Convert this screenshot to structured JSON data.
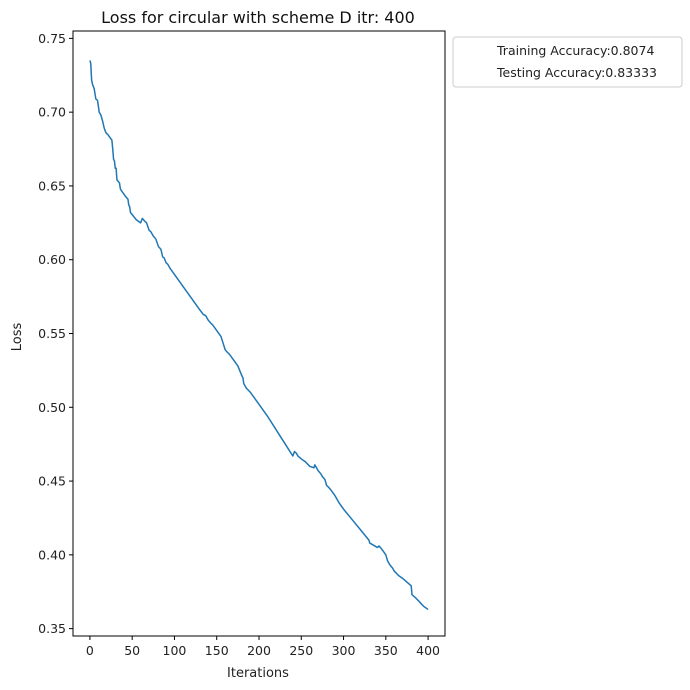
{
  "chart_data": {
    "type": "line",
    "title": "Loss for circular with scheme D itr: 400",
    "xlabel": "Iterations",
    "ylabel": "Loss",
    "xlim": [
      -20,
      420
    ],
    "ylim": [
      0.345,
      0.755
    ],
    "xticks": [
      0,
      50,
      100,
      150,
      200,
      250,
      300,
      350,
      400
    ],
    "yticks": [
      0.35,
      0.4,
      0.45,
      0.5,
      0.55,
      0.6,
      0.65,
      0.7,
      0.75
    ],
    "ytick_labels": [
      "0.35",
      "0.40",
      "0.45",
      "0.50",
      "0.55",
      "0.60",
      "0.65",
      "0.70",
      "0.75"
    ],
    "grid": false,
    "legend_position": "outside-top-right",
    "legend": [
      "Training Accuracy:0.8074",
      "Testing Accuracy:0.83333"
    ],
    "series": [
      {
        "color": "#1f77b4",
        "x": [
          0,
          1,
          2,
          3,
          5,
          7,
          9,
          11,
          13,
          15,
          17,
          19,
          21,
          26,
          27,
          28,
          29,
          30,
          31,
          32,
          35,
          36,
          37,
          42,
          45,
          46,
          47,
          48,
          55,
          60,
          62,
          65,
          67,
          70,
          72,
          75,
          78,
          81,
          84,
          86,
          88,
          90,
          92,
          95,
          100,
          110,
          120,
          130,
          134,
          137,
          140,
          143,
          145,
          150,
          155,
          160,
          163,
          165,
          170,
          175,
          180,
          181,
          182,
          184,
          185,
          190,
          195,
          200,
          210,
          220,
          230,
          240,
          242,
          244,
          245,
          246,
          250,
          255,
          260,
          265,
          266,
          267,
          270,
          273,
          275,
          278,
          280,
          282,
          285,
          290,
          295,
          300,
          310,
          320,
          330,
          331,
          340,
          342,
          345,
          350,
          352,
          355,
          358,
          360,
          365,
          370,
          380,
          381,
          385,
          390,
          395,
          400
        ],
        "y": [
          0.735,
          0.733,
          0.722,
          0.719,
          0.716,
          0.709,
          0.708,
          0.7,
          0.698,
          0.694,
          0.689,
          0.686,
          0.685,
          0.681,
          0.675,
          0.668,
          0.667,
          0.662,
          0.662,
          0.654,
          0.652,
          0.648,
          0.647,
          0.643,
          0.641,
          0.637,
          0.636,
          0.632,
          0.627,
          0.625,
          0.628,
          0.626,
          0.625,
          0.62,
          0.619,
          0.616,
          0.614,
          0.609,
          0.607,
          0.602,
          0.601,
          0.598,
          0.597,
          0.594,
          0.59,
          0.582,
          0.574,
          0.566,
          0.563,
          0.562,
          0.559,
          0.557,
          0.556,
          0.552,
          0.548,
          0.539,
          0.537,
          0.536,
          0.532,
          0.528,
          0.521,
          0.52,
          0.516,
          0.514,
          0.513,
          0.51,
          0.506,
          0.502,
          0.494,
          0.485,
          0.476,
          0.467,
          0.47,
          0.469,
          0.468,
          0.467,
          0.465,
          0.463,
          0.46,
          0.459,
          0.461,
          0.46,
          0.457,
          0.455,
          0.453,
          0.451,
          0.447,
          0.446,
          0.444,
          0.44,
          0.435,
          0.431,
          0.424,
          0.417,
          0.41,
          0.408,
          0.405,
          0.406,
          0.404,
          0.4,
          0.396,
          0.393,
          0.391,
          0.389,
          0.386,
          0.384,
          0.379,
          0.373,
          0.371,
          0.368,
          0.365,
          0.363
        ]
      }
    ]
  }
}
